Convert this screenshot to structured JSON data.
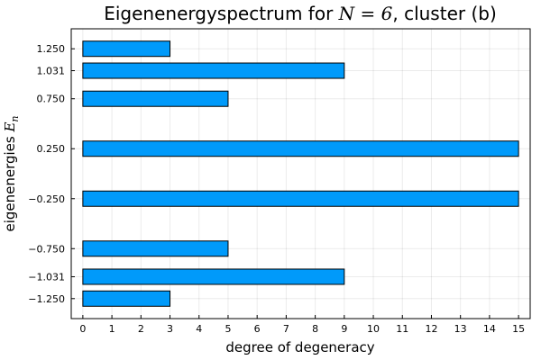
{
  "chart_data": {
    "type": "bar",
    "orientation": "horizontal",
    "title": {
      "prefix": "Eigenenergyspectrum for ",
      "math": "N = 6",
      "suffix": ", cluster (b)"
    },
    "xlabel": "degree of degeneracy",
    "ylabel": {
      "prefix": "eigenenergies ",
      "math": "E",
      "math_sub": "n"
    },
    "categories": [
      "-1.250",
      "-1.031",
      "-0.750",
      "-0.250",
      "0.250",
      "0.750",
      "1.031",
      "1.250"
    ],
    "y_values": [
      -1.25,
      -1.031,
      -0.75,
      -0.25,
      0.25,
      0.75,
      1.031,
      1.25
    ],
    "values": [
      3,
      9,
      5,
      15,
      15,
      5,
      9,
      3
    ],
    "xlim": [
      -0.4,
      15.4
    ],
    "ylim": [
      -1.45,
      1.45
    ],
    "x_ticks": [
      0,
      1,
      2,
      3,
      4,
      5,
      6,
      7,
      8,
      9,
      10,
      11,
      12,
      13,
      14,
      15
    ],
    "bar_color": "#009AFA",
    "bar_edge_color": "#000000",
    "grid": true,
    "legend": false
  }
}
